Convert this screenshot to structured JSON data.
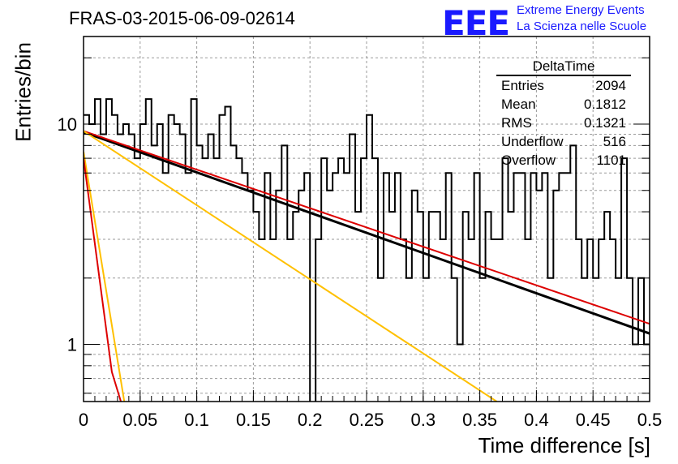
{
  "chart_data": {
    "type": "histogram",
    "title": "FRAS-03-2015-06-09-02614",
    "xlabel": "Time difference [s]",
    "ylabel": "Entries/bin",
    "xlim": [
      0,
      0.5
    ],
    "ylim": [
      0.55,
      25
    ],
    "yscale": "log",
    "grid": true,
    "x_ticks": [
      "0",
      "0.05",
      "0.1",
      "0.15",
      "0.2",
      "0.25",
      "0.3",
      "0.35",
      "0.4",
      "0.45",
      "0.5"
    ],
    "x_tick_values": [
      0,
      0.05,
      0.1,
      0.15,
      0.2,
      0.25,
      0.3,
      0.35,
      0.4,
      0.45,
      0.5
    ],
    "y_ticks": [
      "1",
      "10"
    ],
    "y_tick_values": [
      1,
      10
    ],
    "bin_width": 0.005,
    "bin_values": [
      11,
      10,
      13,
      9,
      13,
      11,
      9,
      10,
      9,
      7,
      10,
      13,
      8,
      10,
      6,
      11,
      10,
      9,
      6,
      13,
      8,
      7,
      9,
      7,
      11,
      12,
      8,
      7,
      6,
      5,
      4,
      3,
      6,
      3,
      5,
      8,
      3,
      4,
      5,
      6,
      0.3,
      3,
      7,
      5,
      6,
      7,
      6,
      9,
      4,
      7,
      11,
      7,
      2,
      6,
      4,
      6,
      3,
      2,
      5,
      4,
      2,
      4,
      4,
      3,
      6,
      2,
      1,
      4,
      3,
      6,
      2,
      4,
      3,
      3,
      7,
      4,
      6,
      6,
      3,
      6,
      5,
      6,
      2,
      5,
      6,
      6,
      8,
      3,
      2,
      3,
      2,
      3,
      4,
      3,
      2,
      7,
      2,
      1,
      2,
      1,
      1,
      1,
      2,
      1,
      1,
      2,
      4,
      1,
      1,
      1,
      2,
      1,
      3,
      1,
      2,
      3,
      1,
      2,
      3,
      2,
      1,
      3,
      2,
      1,
      2,
      3,
      1,
      0.3,
      1,
      2,
      2,
      3,
      1,
      2,
      3,
      1,
      1,
      3,
      2,
      3,
      1,
      0.3,
      2,
      1,
      2,
      1,
      3,
      3,
      1,
      2,
      1
    ],
    "series": [
      {
        "name": "fit",
        "color": "#000000",
        "x": [
          0,
          0.5
        ],
        "y": [
          9.2,
          1.12
        ]
      },
      {
        "name": "",
        "color": "#dd0000",
        "x": [
          0,
          0.5
        ],
        "y": [
          9.3,
          1.24
        ]
      },
      {
        "name": "",
        "color": "#ffc000",
        "x": [
          0,
          0.365
        ],
        "y": [
          9.3,
          0.55
        ]
      },
      {
        "name": "",
        "color": "#ffc000",
        "x": [
          0,
          0.036
        ],
        "y": [
          7.5,
          0.55
        ]
      },
      {
        "name": "",
        "color": "#dd0000",
        "x": [
          0,
          0.025,
          0.033
        ],
        "y": [
          7.0,
          0.75,
          0.55
        ]
      }
    ]
  },
  "stats_box": {
    "title": "DeltaTime",
    "rows": [
      {
        "label": "Entries",
        "value": "2094"
      },
      {
        "label": "Mean",
        "value": "0.1812"
      },
      {
        "label": "RMS",
        "value": "0.1321"
      },
      {
        "label": "Underflow",
        "value": "516"
      },
      {
        "label": "Overflow",
        "value": "1101"
      }
    ]
  },
  "logo": {
    "mark": "EEE",
    "line1": "Extreme Energy Events",
    "line2": "La Scienza nelle Scuole"
  },
  "colors": {
    "logo": "#1a1aff",
    "histogram": "#000000",
    "grid": "#9a9a9a"
  }
}
